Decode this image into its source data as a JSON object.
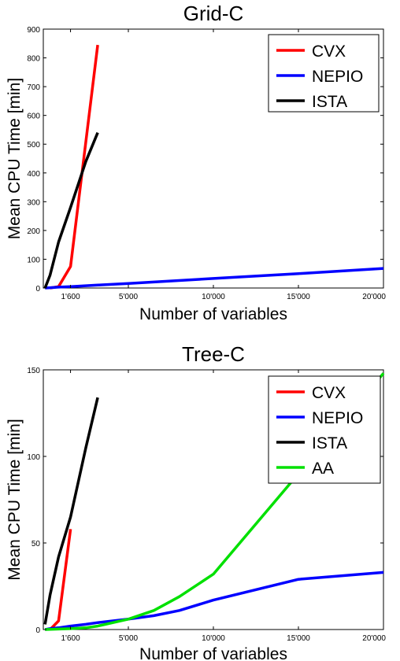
{
  "chart_data": [
    {
      "type": "line",
      "title": "Grid-C",
      "xlabel": "Number of variables",
      "ylabel": "Mean CPU Time [min]",
      "xlim": [
        0,
        20000
      ],
      "ylim": [
        0,
        900
      ],
      "xticks": [
        1600,
        5000,
        10000,
        15000,
        20000
      ],
      "xtick_labels": [
        "1'600",
        "5'000",
        "10'000",
        "15'000",
        "20'000"
      ],
      "yticks": [
        0,
        100,
        200,
        300,
        400,
        500,
        600,
        700,
        800,
        900
      ],
      "ytick_labels": [
        "0",
        "100",
        "200",
        "300",
        "400",
        "500",
        "600",
        "700",
        "800",
        "900"
      ],
      "legend": "top-right",
      "series": [
        {
          "name": "CVX",
          "color": "#ff0000",
          "x": [
            400,
            900,
            1600,
            3200
          ],
          "y": [
            0,
            5,
            75,
            845
          ]
        },
        {
          "name": "NEPIO",
          "color": "#0000ff",
          "x": [
            100,
            400,
            900,
            1600,
            2500,
            3200,
            5000,
            10000,
            15000,
            20000
          ],
          "y": [
            0,
            1,
            3,
            5,
            8,
            10,
            16,
            33,
            50,
            68
          ]
        },
        {
          "name": "ISTA",
          "color": "#000000",
          "x": [
            100,
            400,
            900,
            1600,
            2500,
            3200
          ],
          "y": [
            0,
            45,
            160,
            280,
            440,
            540
          ]
        }
      ]
    },
    {
      "type": "line",
      "title": "Tree-C",
      "xlabel": "Number of variables",
      "ylabel": "Mean CPU Time [min]",
      "xlim": [
        0,
        20000
      ],
      "ylim": [
        0,
        150
      ],
      "xticks": [
        1600,
        5000,
        10000,
        15000,
        20000
      ],
      "xtick_labels": [
        "1'600",
        "5'000",
        "10'000",
        "15'000",
        "20'000"
      ],
      "yticks": [
        0,
        50,
        100,
        150
      ],
      "ytick_labels": [
        "0",
        "50",
        "100",
        "150"
      ],
      "legend": "top-right",
      "series": [
        {
          "name": "CVX",
          "color": "#ff0000",
          "x": [
            400,
            900,
            1600
          ],
          "y": [
            0,
            5,
            58
          ]
        },
        {
          "name": "NEPIO",
          "color": "#0000ff",
          "x": [
            100,
            400,
            900,
            1600,
            2500,
            3200,
            5000,
            6500,
            8000,
            10000,
            15000,
            20000
          ],
          "y": [
            0,
            0.5,
            1,
            2,
            3,
            4,
            6,
            8,
            11,
            17,
            29,
            33
          ]
        },
        {
          "name": "ISTA",
          "color": "#000000",
          "x": [
            100,
            400,
            900,
            1600,
            2500,
            3200
          ],
          "y": [
            3,
            20,
            42,
            65,
            105,
            134
          ]
        },
        {
          "name": "AA",
          "color": "#00e000",
          "x": [
            100,
            1600,
            2500,
            3200,
            5000,
            6500,
            8000,
            10000,
            15000,
            20000
          ],
          "y": [
            0,
            0.5,
            1,
            2,
            6,
            11,
            19,
            32,
            90,
            148
          ]
        }
      ]
    }
  ]
}
